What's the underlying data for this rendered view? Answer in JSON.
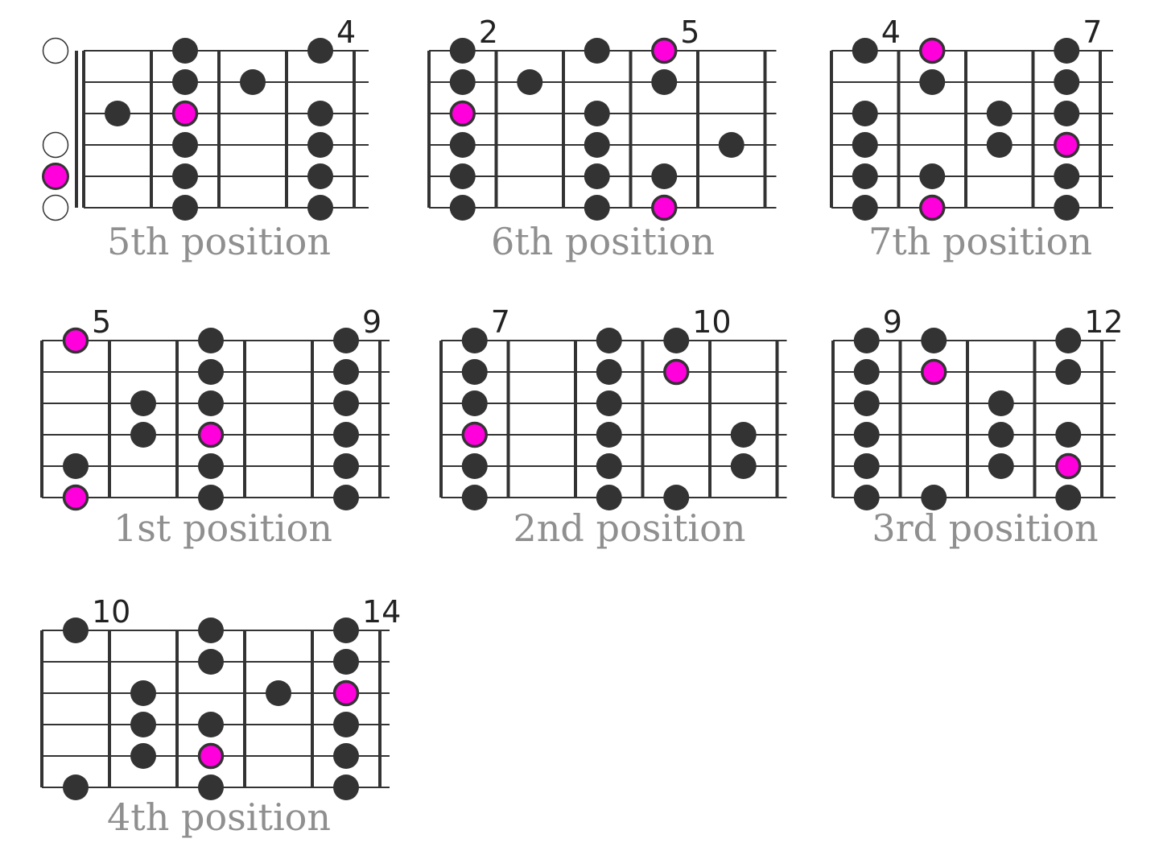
{
  "colors": {
    "grid": "#333333",
    "note": "#333333",
    "root": "#ff00dd",
    "label": "#8f8f8f",
    "open_fill": "#ffffff"
  },
  "diagrams": [
    {
      "label": "5th position",
      "fret_numbers": [
        {
          "text": "4",
          "fret": 4
        }
      ],
      "nut": true,
      "open_strings": [
        {
          "string": 1,
          "root": false
        },
        {
          "string": 4,
          "root": false
        },
        {
          "string": 5,
          "root": true
        },
        {
          "string": 6,
          "root": false
        }
      ],
      "notes": [
        {
          "string": 1,
          "fret": 2,
          "root": false
        },
        {
          "string": 2,
          "fret": 2,
          "root": false
        },
        {
          "string": 3,
          "fret": 2,
          "root": true
        },
        {
          "string": 4,
          "fret": 2,
          "root": false
        },
        {
          "string": 5,
          "fret": 2,
          "root": false
        },
        {
          "string": 6,
          "fret": 2,
          "root": false
        },
        {
          "string": 3,
          "fret": 1,
          "root": false
        },
        {
          "string": 2,
          "fret": 3,
          "root": false
        },
        {
          "string": 1,
          "fret": 4,
          "root": false
        },
        {
          "string": 3,
          "fret": 4,
          "root": false
        },
        {
          "string": 4,
          "fret": 4,
          "root": false
        },
        {
          "string": 5,
          "fret": 4,
          "root": false
        },
        {
          "string": 6,
          "fret": 4,
          "root": false
        }
      ]
    },
    {
      "label": "6th position",
      "fret_numbers": [
        {
          "text": "2",
          "fret": 1
        },
        {
          "text": "5",
          "fret": 4
        }
      ],
      "nut": false,
      "open_strings": [],
      "notes": [
        {
          "string": 1,
          "fret": 1,
          "root": false
        },
        {
          "string": 2,
          "fret": 1,
          "root": false
        },
        {
          "string": 3,
          "fret": 1,
          "root": true
        },
        {
          "string": 4,
          "fret": 1,
          "root": false
        },
        {
          "string": 5,
          "fret": 1,
          "root": false
        },
        {
          "string": 6,
          "fret": 1,
          "root": false
        },
        {
          "string": 2,
          "fret": 2,
          "root": false
        },
        {
          "string": 1,
          "fret": 3,
          "root": false
        },
        {
          "string": 3,
          "fret": 3,
          "root": false
        },
        {
          "string": 4,
          "fret": 3,
          "root": false
        },
        {
          "string": 5,
          "fret": 3,
          "root": false
        },
        {
          "string": 6,
          "fret": 3,
          "root": false
        },
        {
          "string": 1,
          "fret": 4,
          "root": true
        },
        {
          "string": 2,
          "fret": 4,
          "root": false
        },
        {
          "string": 5,
          "fret": 4,
          "root": false
        },
        {
          "string": 6,
          "fret": 4,
          "root": true
        },
        {
          "string": 4,
          "fret": 5,
          "root": false
        }
      ]
    },
    {
      "label": "7th position",
      "fret_numbers": [
        {
          "text": "4",
          "fret": 1
        },
        {
          "text": "7",
          "fret": 4
        }
      ],
      "nut": false,
      "open_strings": [],
      "notes": [
        {
          "string": 1,
          "fret": 1,
          "root": false
        },
        {
          "string": 3,
          "fret": 1,
          "root": false
        },
        {
          "string": 4,
          "fret": 1,
          "root": false
        },
        {
          "string": 5,
          "fret": 1,
          "root": false
        },
        {
          "string": 6,
          "fret": 1,
          "root": false
        },
        {
          "string": 1,
          "fret": 2,
          "root": true
        },
        {
          "string": 2,
          "fret": 2,
          "root": false
        },
        {
          "string": 5,
          "fret": 2,
          "root": false
        },
        {
          "string": 6,
          "fret": 2,
          "root": true
        },
        {
          "string": 3,
          "fret": 3,
          "root": false
        },
        {
          "string": 4,
          "fret": 3,
          "root": false
        },
        {
          "string": 1,
          "fret": 4,
          "root": false
        },
        {
          "string": 2,
          "fret": 4,
          "root": false
        },
        {
          "string": 3,
          "fret": 4,
          "root": false
        },
        {
          "string": 4,
          "fret": 4,
          "root": true
        },
        {
          "string": 5,
          "fret": 4,
          "root": false
        },
        {
          "string": 6,
          "fret": 4,
          "root": false
        }
      ]
    },
    {
      "label": "1st position",
      "fret_numbers": [
        {
          "text": "5",
          "fret": 1
        },
        {
          "text": "9",
          "fret": 5
        }
      ],
      "nut": false,
      "open_strings": [],
      "notes": [
        {
          "string": 1,
          "fret": 1,
          "root": true
        },
        {
          "string": 5,
          "fret": 1,
          "root": false
        },
        {
          "string": 6,
          "fret": 1,
          "root": true
        },
        {
          "string": 3,
          "fret": 2,
          "root": false
        },
        {
          "string": 4,
          "fret": 2,
          "root": false
        },
        {
          "string": 1,
          "fret": 3,
          "root": false
        },
        {
          "string": 2,
          "fret": 3,
          "root": false
        },
        {
          "string": 3,
          "fret": 3,
          "root": false
        },
        {
          "string": 4,
          "fret": 3,
          "root": true
        },
        {
          "string": 5,
          "fret": 3,
          "root": false
        },
        {
          "string": 6,
          "fret": 3,
          "root": false
        },
        {
          "string": 1,
          "fret": 5,
          "root": false
        },
        {
          "string": 2,
          "fret": 5,
          "root": false
        },
        {
          "string": 3,
          "fret": 5,
          "root": false
        },
        {
          "string": 4,
          "fret": 5,
          "root": false
        },
        {
          "string": 5,
          "fret": 5,
          "root": false
        },
        {
          "string": 6,
          "fret": 5,
          "root": false
        }
      ]
    },
    {
      "label": "2nd position",
      "fret_numbers": [
        {
          "text": "7",
          "fret": 1
        },
        {
          "text": "10",
          "fret": 4
        }
      ],
      "nut": false,
      "open_strings": [],
      "notes": [
        {
          "string": 1,
          "fret": 1,
          "root": false
        },
        {
          "string": 2,
          "fret": 1,
          "root": false
        },
        {
          "string": 3,
          "fret": 1,
          "root": false
        },
        {
          "string": 4,
          "fret": 1,
          "root": true
        },
        {
          "string": 5,
          "fret": 1,
          "root": false
        },
        {
          "string": 6,
          "fret": 1,
          "root": false
        },
        {
          "string": 1,
          "fret": 3,
          "root": false
        },
        {
          "string": 2,
          "fret": 3,
          "root": false
        },
        {
          "string": 3,
          "fret": 3,
          "root": false
        },
        {
          "string": 4,
          "fret": 3,
          "root": false
        },
        {
          "string": 5,
          "fret": 3,
          "root": false
        },
        {
          "string": 6,
          "fret": 3,
          "root": false
        },
        {
          "string": 1,
          "fret": 4,
          "root": false
        },
        {
          "string": 2,
          "fret": 4,
          "root": true
        },
        {
          "string": 6,
          "fret": 4,
          "root": false
        },
        {
          "string": 4,
          "fret": 5,
          "root": false
        },
        {
          "string": 5,
          "fret": 5,
          "root": false
        }
      ]
    },
    {
      "label": "3rd position",
      "fret_numbers": [
        {
          "text": "9",
          "fret": 1
        },
        {
          "text": "12",
          "fret": 4
        }
      ],
      "nut": false,
      "open_strings": [],
      "notes": [
        {
          "string": 1,
          "fret": 1,
          "root": false
        },
        {
          "string": 2,
          "fret": 1,
          "root": false
        },
        {
          "string": 3,
          "fret": 1,
          "root": false
        },
        {
          "string": 4,
          "fret": 1,
          "root": false
        },
        {
          "string": 5,
          "fret": 1,
          "root": false
        },
        {
          "string": 6,
          "fret": 1,
          "root": false
        },
        {
          "string": 1,
          "fret": 2,
          "root": false
        },
        {
          "string": 2,
          "fret": 2,
          "root": true
        },
        {
          "string": 6,
          "fret": 2,
          "root": false
        },
        {
          "string": 3,
          "fret": 3,
          "root": false
        },
        {
          "string": 4,
          "fret": 3,
          "root": false
        },
        {
          "string": 5,
          "fret": 3,
          "root": false
        },
        {
          "string": 1,
          "fret": 4,
          "root": false
        },
        {
          "string": 2,
          "fret": 4,
          "root": false
        },
        {
          "string": 4,
          "fret": 4,
          "root": false
        },
        {
          "string": 5,
          "fret": 4,
          "root": true
        },
        {
          "string": 6,
          "fret": 4,
          "root": false
        }
      ]
    },
    {
      "label": "4th position",
      "fret_numbers": [
        {
          "text": "10",
          "fret": 1
        },
        {
          "text": "14",
          "fret": 5
        }
      ],
      "nut": false,
      "open_strings": [],
      "notes": [
        {
          "string": 1,
          "fret": 1,
          "root": false
        },
        {
          "string": 6,
          "fret": 1,
          "root": false
        },
        {
          "string": 3,
          "fret": 2,
          "root": false
        },
        {
          "string": 4,
          "fret": 2,
          "root": false
        },
        {
          "string": 5,
          "fret": 2,
          "root": false
        },
        {
          "string": 1,
          "fret": 3,
          "root": false
        },
        {
          "string": 2,
          "fret": 3,
          "root": false
        },
        {
          "string": 4,
          "fret": 3,
          "root": false
        },
        {
          "string": 5,
          "fret": 3,
          "root": true
        },
        {
          "string": 6,
          "fret": 3,
          "root": false
        },
        {
          "string": 3,
          "fret": 4,
          "root": false
        },
        {
          "string": 1,
          "fret": 5,
          "root": false
        },
        {
          "string": 2,
          "fret": 5,
          "root": false
        },
        {
          "string": 3,
          "fret": 5,
          "root": true
        },
        {
          "string": 4,
          "fret": 5,
          "root": false
        },
        {
          "string": 5,
          "fret": 5,
          "root": false
        },
        {
          "string": 6,
          "fret": 5,
          "root": false
        }
      ]
    }
  ]
}
